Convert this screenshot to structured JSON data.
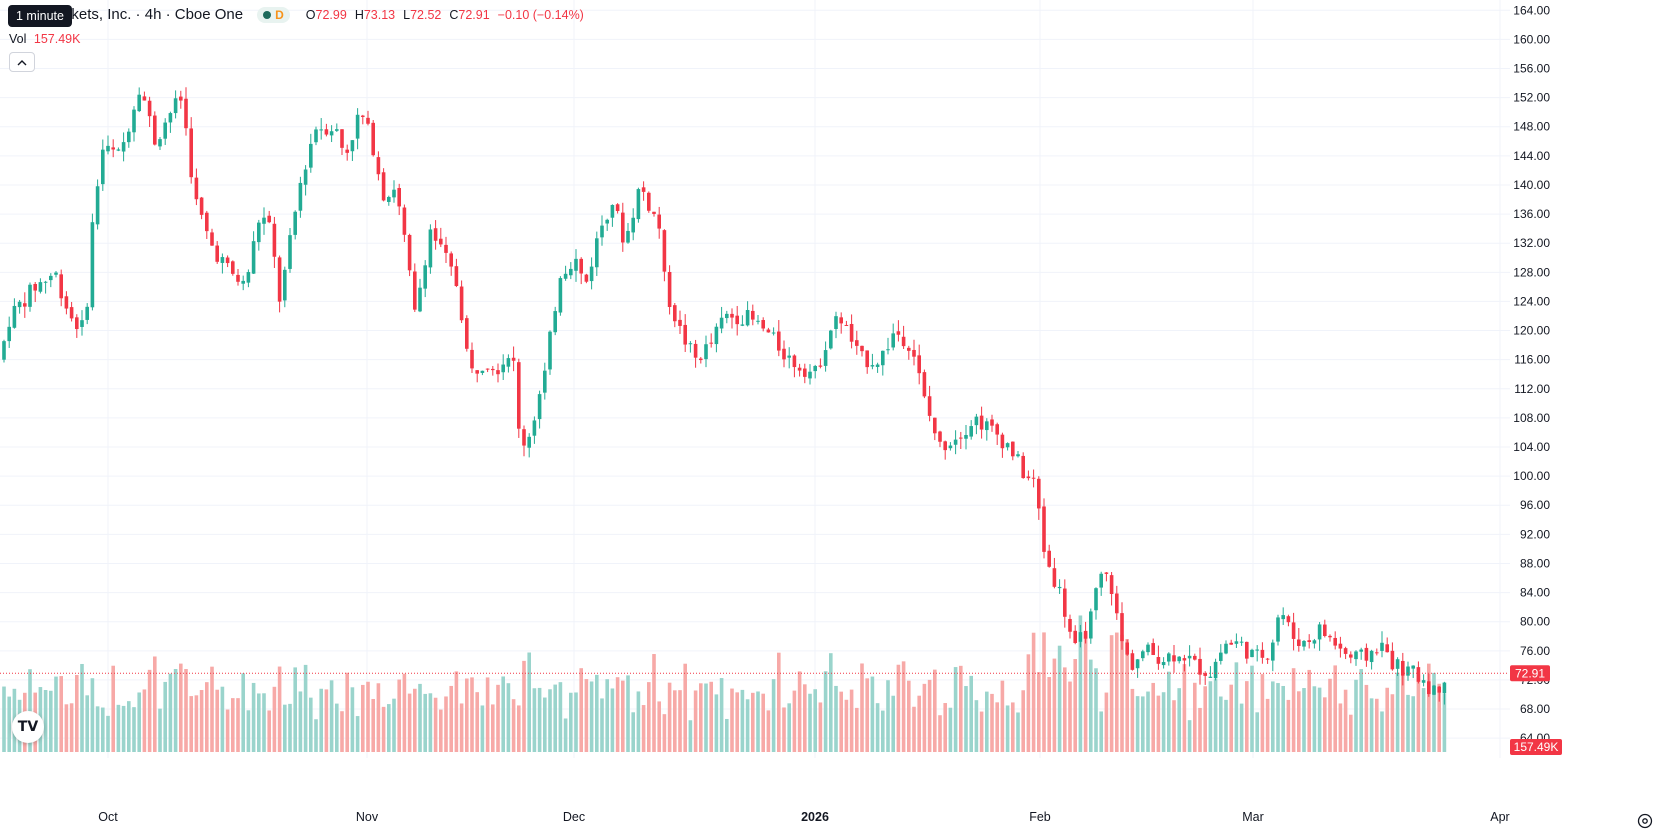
{
  "legend": {
    "title": "hood Markets, Inc. · 4h · Cboe One",
    "badge": "D",
    "open_label": "O",
    "open": "72.99",
    "high_label": "H",
    "high": "73.13",
    "low_label": "L",
    "low": "72.52",
    "close_label": "C",
    "close": "72.91",
    "change": "−0.10 (−0.14%)"
  },
  "tooltip": "1 minute",
  "volume": {
    "label": "Vol",
    "value": "157.49K"
  },
  "colors": {
    "up": "#22ab94",
    "down": "#f23645",
    "up_vol": "#9ad4cc",
    "down_vol": "#f7a9a7",
    "grid": "#f0f3fa",
    "text": "#131722"
  },
  "chart_data": {
    "type": "candlestick",
    "y_ticks": [
      "164.00",
      "160.00",
      "156.00",
      "152.00",
      "148.00",
      "144.00",
      "140.00",
      "136.00",
      "132.00",
      "128.00",
      "124.00",
      "120.00",
      "116.00",
      "112.00",
      "108.00",
      "104.00",
      "100.00",
      "96.00",
      "92.00",
      "88.00",
      "84.00",
      "80.00",
      "76.00",
      "72.00",
      "68.00",
      "64.00"
    ],
    "ylim": [
      61,
      165
    ],
    "x_labels": [
      "Oct",
      "Nov",
      "Dec",
      "2026",
      "Feb",
      "Mar",
      "Apr"
    ],
    "x_label_positions": [
      108,
      367,
      574,
      815,
      1040,
      1253,
      1500
    ],
    "last_price": "72.91",
    "last_volume": "157.49K",
    "anchors": [
      [
        0,
        116
      ],
      [
        10,
        122
      ],
      [
        35,
        126
      ],
      [
        55,
        128
      ],
      [
        70,
        122
      ],
      [
        85,
        120
      ],
      [
        92,
        134
      ],
      [
        102,
        145
      ],
      [
        120,
        144
      ],
      [
        140,
        154
      ],
      [
        155,
        146
      ],
      [
        170,
        150
      ],
      [
        182,
        152
      ],
      [
        195,
        138
      ],
      [
        210,
        132
      ],
      [
        230,
        128
      ],
      [
        245,
        126
      ],
      [
        260,
        136
      ],
      [
        270,
        134
      ],
      [
        280,
        124
      ],
      [
        300,
        140
      ],
      [
        315,
        148
      ],
      [
        335,
        148
      ],
      [
        345,
        144
      ],
      [
        360,
        150
      ],
      [
        372,
        146
      ],
      [
        385,
        138
      ],
      [
        395,
        140
      ],
      [
        405,
        132
      ],
      [
        415,
        122
      ],
      [
        430,
        134
      ],
      [
        445,
        130
      ],
      [
        458,
        126
      ],
      [
        470,
        114
      ],
      [
        485,
        116
      ],
      [
        500,
        115
      ],
      [
        512,
        118
      ],
      [
        520,
        104
      ],
      [
        530,
        106
      ],
      [
        545,
        114
      ],
      [
        560,
        128
      ],
      [
        575,
        130
      ],
      [
        585,
        126
      ],
      [
        600,
        134
      ],
      [
        612,
        138
      ],
      [
        625,
        132
      ],
      [
        640,
        140
      ],
      [
        660,
        134
      ],
      [
        665,
        126
      ],
      [
        680,
        120
      ],
      [
        695,
        116
      ],
      [
        710,
        118
      ],
      [
        725,
        122
      ],
      [
        745,
        122
      ],
      [
        765,
        120
      ],
      [
        790,
        116
      ],
      [
        815,
        114
      ],
      [
        830,
        120
      ],
      [
        840,
        122
      ],
      [
        860,
        116
      ],
      [
        880,
        116
      ],
      [
        895,
        120
      ],
      [
        912,
        118
      ],
      [
        925,
        110
      ],
      [
        940,
        104
      ],
      [
        960,
        106
      ],
      [
        975,
        108
      ],
      [
        995,
        106
      ],
      [
        1010,
        104
      ],
      [
        1025,
        100
      ],
      [
        1035,
        99
      ],
      [
        1040,
        94
      ],
      [
        1045,
        89
      ],
      [
        1060,
        84
      ],
      [
        1075,
        76
      ],
      [
        1090,
        80
      ],
      [
        1100,
        86
      ],
      [
        1110,
        86
      ],
      [
        1120,
        78
      ],
      [
        1130,
        74
      ],
      [
        1145,
        76
      ],
      [
        1165,
        75
      ],
      [
        1180,
        76
      ],
      [
        1195,
        74
      ],
      [
        1210,
        73
      ],
      [
        1225,
        77
      ],
      [
        1240,
        77
      ],
      [
        1255,
        75
      ],
      [
        1270,
        76
      ],
      [
        1280,
        82
      ],
      [
        1292,
        78
      ],
      [
        1305,
        77
      ],
      [
        1320,
        79
      ],
      [
        1335,
        77
      ],
      [
        1350,
        75
      ],
      [
        1365,
        75
      ],
      [
        1380,
        77
      ],
      [
        1395,
        74
      ],
      [
        1410,
        73
      ],
      [
        1425,
        72
      ],
      [
        1435,
        70
      ],
      [
        1445,
        72.9
      ]
    ],
    "volumes_relative": [
      0.55,
      0.45,
      0.5,
      0.38,
      0.62,
      0.7,
      0.48,
      0.4,
      0.6,
      0.52,
      0.66,
      0.58,
      0.35,
      0.45,
      0.5,
      0.72,
      0.55,
      0.42,
      0.48,
      0.3,
      0.4,
      0.6,
      0.5,
      0.46
    ]
  }
}
